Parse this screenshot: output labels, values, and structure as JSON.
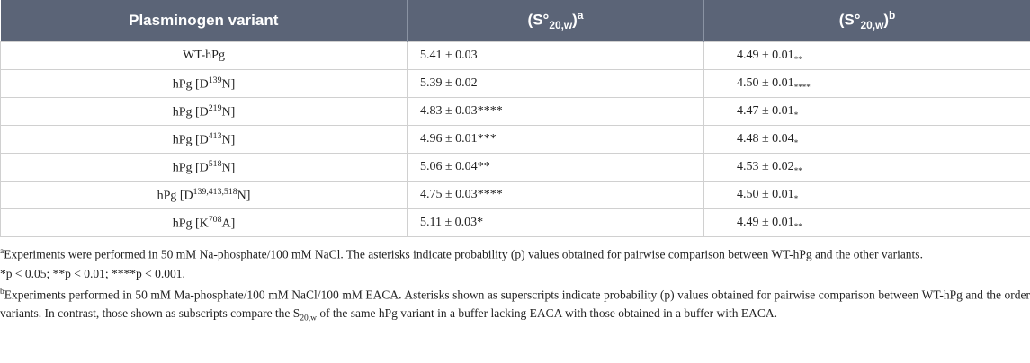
{
  "table": {
    "header": [
      {
        "text": "Plasminogen variant"
      },
      {
        "text": "(S°",
        "sub": "20,w",
        "close": ")",
        "sup": "a"
      },
      {
        "text": "(S°",
        "sub": "20,w",
        "close": ")",
        "sup": "b"
      }
    ],
    "rows": [
      [
        {
          "pre": "WT-hPg"
        },
        {
          "value": "5.41 ± 0.03"
        },
        {
          "value": "4.49 ± 0.01",
          "sub": "**"
        }
      ],
      [
        {
          "pre": "hPg [D",
          "sup": "139",
          "post": "N]"
        },
        {
          "value": "5.39 ± 0.02"
        },
        {
          "value": "4.50 ± 0.01",
          "sub": "****"
        }
      ],
      [
        {
          "pre": "hPg [D",
          "sup": "219",
          "post": "N]"
        },
        {
          "value": "4.83 ± 0.03",
          "mark": "****"
        },
        {
          "value": "4.47 ± 0.01",
          "sub": "*"
        }
      ],
      [
        {
          "pre": "hPg [D",
          "sup": "413",
          "post": "N]"
        },
        {
          "value": "4.96 ± 0.01",
          "mark": "***"
        },
        {
          "value": "4.48 ± 0.04",
          "sub": "*"
        }
      ],
      [
        {
          "pre": "hPg [D",
          "sup": "518",
          "post": "N]"
        },
        {
          "value": "5.06 ± 0.04",
          "mark": "**"
        },
        {
          "value": "4.53 ± 0.02",
          "sub": "**"
        }
      ],
      [
        {
          "pre": "hPg [D",
          "sup": "139,413,518",
          "post": "N]"
        },
        {
          "value": "4.75 ± 0.03",
          "mark": "****"
        },
        {
          "value": "4.50 ± 0.01",
          "sub": "*"
        }
      ],
      [
        {
          "pre": "hPg [K",
          "sup": "708",
          "post": "A]"
        },
        {
          "value": "5.11 ± 0.03",
          "mark": "*"
        },
        {
          "value": "4.49 ± 0.01",
          "sub": "**"
        }
      ]
    ]
  },
  "footnotes": {
    "a": {
      "sup": "a",
      "text": "Experiments were performed in 50 mM Na-phosphate/100 mM NaCl. The asterisks indicate probability (p) values obtained for pairwise comparison between WT-hPg and the other variants.",
      "line2": "*p < 0.05; **p < 0.01; ****p < 0.001."
    },
    "b": {
      "sup": "b",
      "text": "Experiments performed in 50 mM Ma-phosphate/100 mM NaCl/100 mM EACA. Asterisks shown as superscripts indicate probability (p) values obtained for pairwise comparison between WT-hPg and the order variants. In contrast, those shown as subscripts compare the S",
      "sub": "20,w",
      "rest": " of the same hPg variant in a buffer lacking EACA with those obtained in a buffer with EACA."
    }
  }
}
